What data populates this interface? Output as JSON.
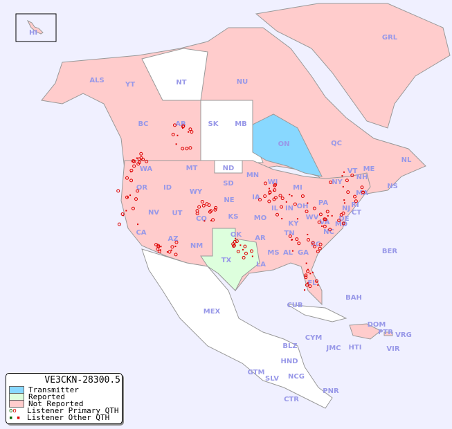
{
  "map": {
    "colors": {
      "background": "#f0f0ff",
      "not_reported": "#ffcccc",
      "reported": "#ddffdd",
      "transmitter": "#88d8ff",
      "unlisted": "#ffffff",
      "points": "#dd0000",
      "labels": "#9898e8"
    },
    "regions": [
      {
        "code": "HI",
        "state": "not_reported"
      },
      {
        "code": "ALS",
        "state": "not_reported"
      },
      {
        "code": "YT",
        "state": "not_reported"
      },
      {
        "code": "NT",
        "state": "unlisted"
      },
      {
        "code": "NU",
        "state": "not_reported"
      },
      {
        "code": "GRL",
        "state": "not_reported"
      },
      {
        "code": "BC",
        "state": "not_reported"
      },
      {
        "code": "AB",
        "state": "not_reported"
      },
      {
        "code": "SK",
        "state": "unlisted"
      },
      {
        "code": "MB",
        "state": "unlisted"
      },
      {
        "code": "ON",
        "state": "transmitter"
      },
      {
        "code": "QC",
        "state": "not_reported"
      },
      {
        "code": "NL",
        "state": "not_reported"
      },
      {
        "code": "NS",
        "state": "not_reported"
      },
      {
        "code": "WA",
        "state": "not_reported"
      },
      {
        "code": "MT",
        "state": "not_reported"
      },
      {
        "code": "ND",
        "state": "unlisted"
      },
      {
        "code": "MN",
        "state": "not_reported"
      },
      {
        "code": "WI",
        "state": "not_reported"
      },
      {
        "code": "MI",
        "state": "not_reported"
      },
      {
        "code": "NY",
        "state": "not_reported"
      },
      {
        "code": "VT",
        "state": "not_reported"
      },
      {
        "code": "NH",
        "state": "not_reported"
      },
      {
        "code": "ME",
        "state": "not_reported"
      },
      {
        "code": "MA",
        "state": "not_reported"
      },
      {
        "code": "OR",
        "state": "not_reported"
      },
      {
        "code": "ID",
        "state": "not_reported"
      },
      {
        "code": "WY",
        "state": "not_reported"
      },
      {
        "code": "SD",
        "state": "not_reported"
      },
      {
        "code": "IA",
        "state": "not_reported"
      },
      {
        "code": "IL",
        "state": "not_reported"
      },
      {
        "code": "IN",
        "state": "not_reported"
      },
      {
        "code": "OH",
        "state": "not_reported"
      },
      {
        "code": "PA",
        "state": "not_reported"
      },
      {
        "code": "NJ",
        "state": "not_reported"
      },
      {
        "code": "CT",
        "state": "not_reported"
      },
      {
        "code": "RI",
        "state": "not_reported"
      },
      {
        "code": "NV",
        "state": "not_reported"
      },
      {
        "code": "UT",
        "state": "not_reported"
      },
      {
        "code": "CO",
        "state": "not_reported"
      },
      {
        "code": "NE",
        "state": "not_reported"
      },
      {
        "code": "KS",
        "state": "not_reported"
      },
      {
        "code": "MO",
        "state": "not_reported"
      },
      {
        "code": "KY",
        "state": "not_reported"
      },
      {
        "code": "WV",
        "state": "not_reported"
      },
      {
        "code": "VA",
        "state": "not_reported"
      },
      {
        "code": "DE",
        "state": "not_reported"
      },
      {
        "code": "MD",
        "state": "not_reported"
      },
      {
        "code": "CA",
        "state": "not_reported"
      },
      {
        "code": "AZ",
        "state": "not_reported"
      },
      {
        "code": "NM",
        "state": "not_reported"
      },
      {
        "code": "OK",
        "state": "not_reported"
      },
      {
        "code": "AR",
        "state": "not_reported"
      },
      {
        "code": "TN",
        "state": "not_reported"
      },
      {
        "code": "NC",
        "state": "not_reported"
      },
      {
        "code": "SC",
        "state": "not_reported"
      },
      {
        "code": "MS",
        "state": "not_reported"
      },
      {
        "code": "AL",
        "state": "not_reported"
      },
      {
        "code": "GA",
        "state": "not_reported"
      },
      {
        "code": "LA",
        "state": "not_reported"
      },
      {
        "code": "TX",
        "state": "reported"
      },
      {
        "code": "FL",
        "state": "not_reported"
      },
      {
        "code": "BER",
        "state": "unlisted"
      },
      {
        "code": "MEX",
        "state": "unlisted"
      },
      {
        "code": "CUB",
        "state": "unlisted"
      },
      {
        "code": "BAH",
        "state": "unlisted"
      },
      {
        "code": "DOM",
        "state": "not_reported"
      },
      {
        "code": "PTR",
        "state": "not_reported"
      },
      {
        "code": "VRG",
        "state": "unlisted"
      },
      {
        "code": "CYM",
        "state": "unlisted"
      },
      {
        "code": "JMC",
        "state": "unlisted"
      },
      {
        "code": "HTI",
        "state": "unlisted"
      },
      {
        "code": "VIR",
        "state": "unlisted"
      },
      {
        "code": "BLZ",
        "state": "unlisted"
      },
      {
        "code": "HND",
        "state": "unlisted"
      },
      {
        "code": "GTM",
        "state": "unlisted"
      },
      {
        "code": "SLV",
        "state": "unlisted"
      },
      {
        "code": "NCG",
        "state": "unlisted"
      },
      {
        "code": "CTR",
        "state": "unlisted"
      },
      {
        "code": "PNR",
        "state": "unlisted"
      }
    ]
  },
  "legend": {
    "title": "VE3CKN-28300.5",
    "items": [
      {
        "label": "Transmitter",
        "color": "#88d8ff"
      },
      {
        "label": "Reported",
        "color": "#ddffdd"
      },
      {
        "label": "Not Reported",
        "color": "#ffcccc"
      },
      {
        "label": "Listener Primary QTH",
        "marker": "circle"
      },
      {
        "label": "Listener Other QTH",
        "marker": "square"
      }
    ]
  }
}
